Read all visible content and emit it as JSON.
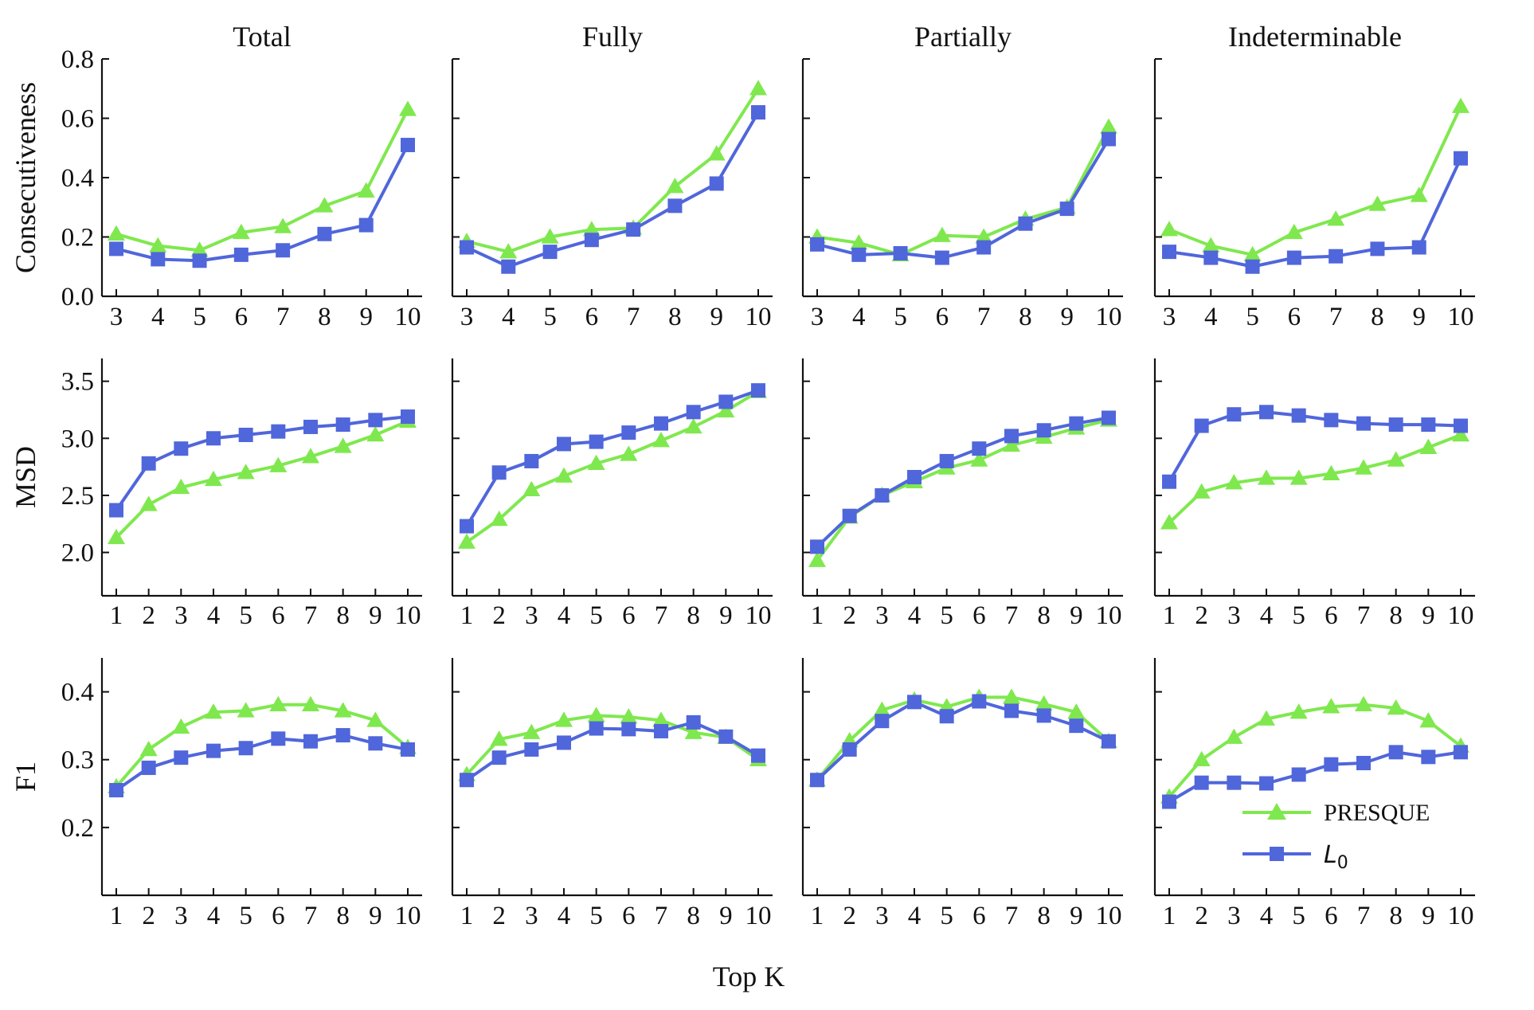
{
  "figure": {
    "column_titles": [
      "Total",
      "Fully",
      "Partially",
      "Indeterminable"
    ],
    "row_labels": [
      "Consecutiveness",
      "MSD",
      "F1"
    ],
    "xlabel": "Top K",
    "legend": {
      "placement": "lower-right of bottom-right panel",
      "entries": [
        {
          "name": "PRESQUE",
          "marker": "triangle-up",
          "color": "#7fe84e"
        },
        {
          "name": "L0",
          "name_sub": "0",
          "name_base": "L",
          "marker": "square",
          "color": "#5066db"
        }
      ]
    },
    "colors": {
      "presque": "#7fe84e",
      "l0": "#5066db"
    }
  },
  "chart_data": [
    {
      "type": "line",
      "row": "Consecutiveness",
      "column": "Total",
      "x": [
        3,
        4,
        5,
        6,
        7,
        8,
        9,
        10
      ],
      "ylim": [
        0,
        0.8
      ],
      "yticks": [
        0.0,
        0.2,
        0.4,
        0.6,
        0.8
      ],
      "series": [
        {
          "name": "PRESQUE",
          "values": [
            0.21,
            0.17,
            0.155,
            0.215,
            0.235,
            0.305,
            0.355,
            0.63
          ]
        },
        {
          "name": "L0",
          "values": [
            0.16,
            0.125,
            0.12,
            0.14,
            0.155,
            0.21,
            0.24,
            0.51
          ]
        }
      ]
    },
    {
      "type": "line",
      "row": "Consecutiveness",
      "column": "Fully",
      "x": [
        3,
        4,
        5,
        6,
        7,
        8,
        9,
        10
      ],
      "ylim": [
        0,
        0.8
      ],
      "yticks": [
        0.0,
        0.2,
        0.4,
        0.6,
        0.8
      ],
      "series": [
        {
          "name": "PRESQUE",
          "values": [
            0.185,
            0.15,
            0.2,
            0.225,
            0.23,
            0.37,
            0.48,
            0.7
          ]
        },
        {
          "name": "L0",
          "values": [
            0.165,
            0.1,
            0.15,
            0.19,
            0.225,
            0.305,
            0.38,
            0.62
          ]
        }
      ]
    },
    {
      "type": "line",
      "row": "Consecutiveness",
      "column": "Partially",
      "x": [
        3,
        4,
        5,
        6,
        7,
        8,
        9,
        10
      ],
      "ylim": [
        0,
        0.8
      ],
      "yticks": [
        0.0,
        0.2,
        0.4,
        0.6,
        0.8
      ],
      "series": [
        {
          "name": "PRESQUE",
          "values": [
            0.2,
            0.18,
            0.14,
            0.205,
            0.2,
            0.26,
            0.3,
            0.57
          ]
        },
        {
          "name": "L0",
          "values": [
            0.175,
            0.14,
            0.145,
            0.13,
            0.165,
            0.245,
            0.295,
            0.53
          ]
        }
      ]
    },
    {
      "type": "line",
      "row": "Consecutiveness",
      "column": "Indeterminable",
      "x": [
        3,
        4,
        5,
        6,
        7,
        8,
        9,
        10
      ],
      "ylim": [
        0,
        0.8
      ],
      "yticks": [
        0.0,
        0.2,
        0.4,
        0.6,
        0.8
      ],
      "series": [
        {
          "name": "PRESQUE",
          "values": [
            0.225,
            0.17,
            0.14,
            0.215,
            0.26,
            0.31,
            0.34,
            0.64
          ]
        },
        {
          "name": "L0",
          "values": [
            0.15,
            0.13,
            0.1,
            0.13,
            0.135,
            0.16,
            0.165,
            0.465
          ]
        }
      ]
    },
    {
      "type": "line",
      "row": "MSD",
      "column": "Total",
      "x": [
        1,
        2,
        3,
        4,
        5,
        6,
        7,
        8,
        9,
        10
      ],
      "ylim": [
        1.62,
        3.7
      ],
      "yticks": [
        2.0,
        2.5,
        3.0,
        3.5
      ],
      "series": [
        {
          "name": "PRESQUE",
          "values": [
            2.13,
            2.42,
            2.57,
            2.64,
            2.7,
            2.76,
            2.84,
            2.93,
            3.03,
            3.15
          ]
        },
        {
          "name": "L0",
          "values": [
            2.37,
            2.78,
            2.91,
            3.0,
            3.03,
            3.06,
            3.1,
            3.12,
            3.16,
            3.19
          ]
        }
      ]
    },
    {
      "type": "line",
      "row": "MSD",
      "column": "Fully",
      "x": [
        1,
        2,
        3,
        4,
        5,
        6,
        7,
        8,
        9,
        10
      ],
      "ylim": [
        1.62,
        3.7
      ],
      "yticks": [
        2.0,
        2.5,
        3.0,
        3.5
      ],
      "series": [
        {
          "name": "PRESQUE",
          "values": [
            2.09,
            2.29,
            2.55,
            2.67,
            2.78,
            2.86,
            2.98,
            3.1,
            3.24,
            3.41
          ]
        },
        {
          "name": "L0",
          "values": [
            2.23,
            2.7,
            2.8,
            2.95,
            2.97,
            3.05,
            3.13,
            3.23,
            3.32,
            3.42
          ]
        }
      ]
    },
    {
      "type": "line",
      "row": "MSD",
      "column": "Partially",
      "x": [
        1,
        2,
        3,
        4,
        5,
        6,
        7,
        8,
        9,
        10
      ],
      "ylim": [
        1.62,
        3.7
      ],
      "yticks": [
        2.0,
        2.5,
        3.0,
        3.5
      ],
      "series": [
        {
          "name": "PRESQUE",
          "values": [
            1.93,
            2.31,
            2.5,
            2.62,
            2.74,
            2.81,
            2.94,
            3.01,
            3.09,
            3.16
          ]
        },
        {
          "name": "L0",
          "values": [
            2.05,
            2.32,
            2.5,
            2.66,
            2.8,
            2.91,
            3.02,
            3.07,
            3.13,
            3.18
          ]
        }
      ]
    },
    {
      "type": "line",
      "row": "MSD",
      "column": "Indeterminable",
      "x": [
        1,
        2,
        3,
        4,
        5,
        6,
        7,
        8,
        9,
        10
      ],
      "ylim": [
        1.62,
        3.7
      ],
      "yticks": [
        2.0,
        2.5,
        3.0,
        3.5
      ],
      "series": [
        {
          "name": "PRESQUE",
          "values": [
            2.26,
            2.53,
            2.61,
            2.65,
            2.65,
            2.69,
            2.74,
            2.81,
            2.92,
            3.03
          ]
        },
        {
          "name": "L0",
          "values": [
            2.62,
            3.11,
            3.21,
            3.23,
            3.2,
            3.16,
            3.13,
            3.12,
            3.12,
            3.11
          ]
        }
      ]
    },
    {
      "type": "line",
      "row": "F1",
      "column": "Total",
      "x": [
        1,
        2,
        3,
        4,
        5,
        6,
        7,
        8,
        9,
        10
      ],
      "ylim": [
        0.1,
        0.45
      ],
      "yticks": [
        0.2,
        0.3,
        0.4
      ],
      "series": [
        {
          "name": "PRESQUE",
          "values": [
            0.26,
            0.315,
            0.348,
            0.37,
            0.372,
            0.381,
            0.381,
            0.372,
            0.358,
            0.318
          ]
        },
        {
          "name": "L0",
          "values": [
            0.255,
            0.288,
            0.303,
            0.313,
            0.317,
            0.331,
            0.327,
            0.336,
            0.324,
            0.315
          ]
        }
      ]
    },
    {
      "type": "line",
      "row": "F1",
      "column": "Fully",
      "x": [
        1,
        2,
        3,
        4,
        5,
        6,
        7,
        8,
        9,
        10
      ],
      "ylim": [
        0.1,
        0.45
      ],
      "yticks": [
        0.2,
        0.3,
        0.4
      ],
      "series": [
        {
          "name": "PRESQUE",
          "values": [
            0.278,
            0.33,
            0.34,
            0.358,
            0.365,
            0.363,
            0.358,
            0.34,
            0.333,
            0.3
          ]
        },
        {
          "name": "L0",
          "values": [
            0.27,
            0.303,
            0.315,
            0.325,
            0.346,
            0.345,
            0.342,
            0.355,
            0.334,
            0.306
          ]
        }
      ]
    },
    {
      "type": "line",
      "row": "F1",
      "column": "Partially",
      "x": [
        1,
        2,
        3,
        4,
        5,
        6,
        7,
        8,
        9,
        10
      ],
      "ylim": [
        0.1,
        0.45
      ],
      "yticks": [
        0.2,
        0.3,
        0.4
      ],
      "series": [
        {
          "name": "PRESQUE",
          "values": [
            0.27,
            0.328,
            0.373,
            0.388,
            0.378,
            0.392,
            0.392,
            0.382,
            0.37,
            0.327
          ]
        },
        {
          "name": "L0",
          "values": [
            0.27,
            0.315,
            0.357,
            0.385,
            0.364,
            0.386,
            0.372,
            0.365,
            0.35,
            0.327
          ]
        }
      ]
    },
    {
      "type": "line",
      "row": "F1",
      "column": "Indeterminable",
      "x": [
        1,
        2,
        3,
        4,
        5,
        6,
        7,
        8,
        9,
        10
      ],
      "ylim": [
        0.1,
        0.45
      ],
      "yticks": [
        0.2,
        0.3,
        0.4
      ],
      "series": [
        {
          "name": "PRESQUE",
          "values": [
            0.245,
            0.3,
            0.333,
            0.36,
            0.37,
            0.378,
            0.381,
            0.376,
            0.357,
            0.32
          ]
        },
        {
          "name": "L0",
          "values": [
            0.238,
            0.266,
            0.266,
            0.265,
            0.278,
            0.293,
            0.295,
            0.311,
            0.304,
            0.311
          ]
        }
      ]
    }
  ]
}
